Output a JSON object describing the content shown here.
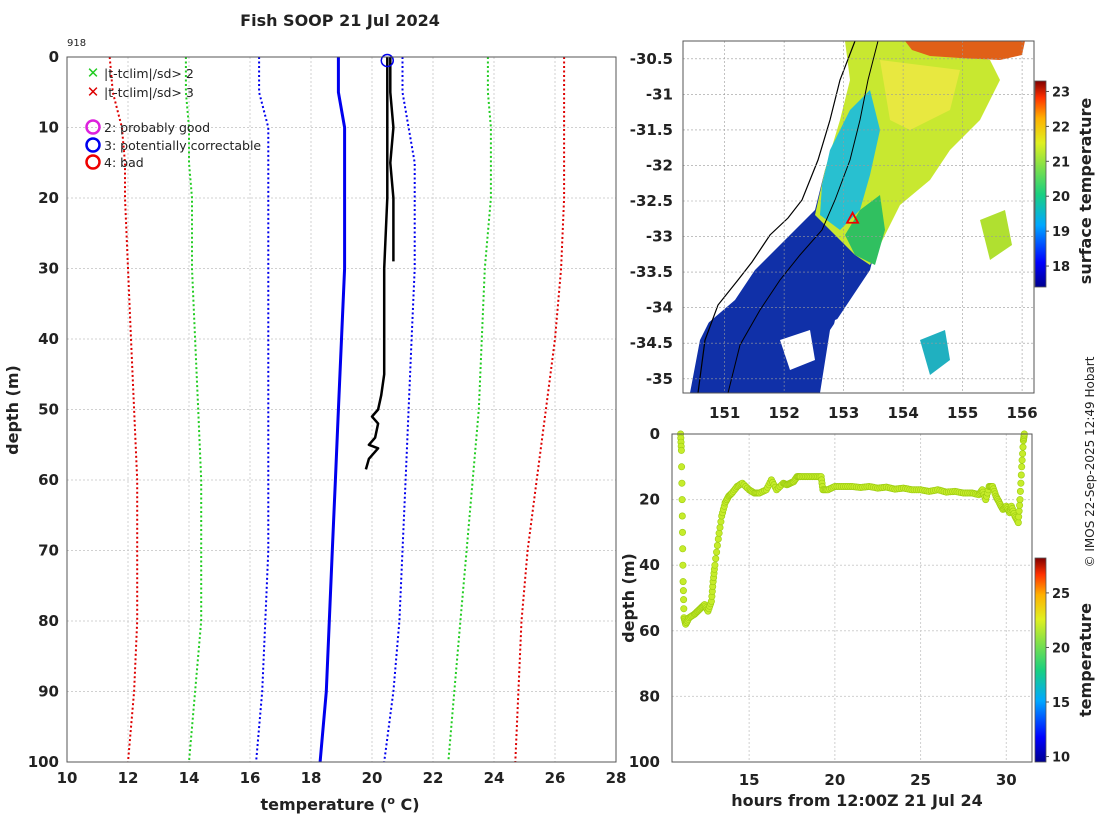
{
  "figure": {
    "title": "Fish SOOP 21 Jul 2024",
    "profile_id": "918",
    "credit": "© IMOS 22-Sep-2025 12:49 Hobart"
  },
  "legend": {
    "items": [
      {
        "marker": "x",
        "color": "#22cc22",
        "label": "|t-tclim|/sd> 2"
      },
      {
        "marker": "x",
        "color": "#dd0000",
        "label": "|t-tclim|/sd> 3"
      },
      {
        "marker": "o",
        "color": "#dd22dd",
        "label": "2: probably good"
      },
      {
        "marker": "o",
        "color": "#0000ee",
        "label": "3: potentially correctable"
      },
      {
        "marker": "o",
        "color": "#ee0000",
        "label": "4: bad"
      }
    ]
  },
  "chart_data": [
    {
      "id": "profile",
      "type": "line",
      "xlabel": "temperature (",
      "xlabel_sup": "o",
      "xlabel_end": " C)",
      "ylabel": "depth (m)",
      "xlim": [
        10,
        28
      ],
      "ylim": [
        0,
        100
      ],
      "y_inverted": true,
      "grid": true,
      "xticks": [
        10,
        12,
        14,
        16,
        18,
        20,
        22,
        24,
        26,
        28
      ],
      "yticks": [
        0,
        10,
        20,
        30,
        40,
        50,
        60,
        70,
        80,
        90,
        100
      ],
      "series": [
        {
          "name": "clim -3sd",
          "color": "#dd0000",
          "style": "dotted",
          "points": [
            [
              11.4,
              0
            ],
            [
              11.5,
              5
            ],
            [
              11.8,
              10
            ],
            [
              11.9,
              15
            ],
            [
              11.9,
              20
            ],
            [
              12.0,
              30
            ],
            [
              12.1,
              40
            ],
            [
              12.2,
              50
            ],
            [
              12.3,
              60
            ],
            [
              12.3,
              70
            ],
            [
              12.3,
              80
            ],
            [
              12.2,
              90
            ],
            [
              12.0,
              100
            ]
          ]
        },
        {
          "name": "clim -2sd",
          "color": "#22cc22",
          "style": "dotted",
          "points": [
            [
              13.9,
              0
            ],
            [
              13.9,
              5
            ],
            [
              14.0,
              10
            ],
            [
              14.0,
              15
            ],
            [
              14.1,
              20
            ],
            [
              14.1,
              30
            ],
            [
              14.2,
              40
            ],
            [
              14.3,
              50
            ],
            [
              14.4,
              60
            ],
            [
              14.4,
              70
            ],
            [
              14.4,
              80
            ],
            [
              14.2,
              90
            ],
            [
              14.0,
              100
            ]
          ]
        },
        {
          "name": "clim -1sd",
          "color": "#0000ee",
          "style": "dotted",
          "points": [
            [
              16.3,
              0
            ],
            [
              16.3,
              5
            ],
            [
              16.6,
              10
            ],
            [
              16.6,
              15
            ],
            [
              16.6,
              20
            ],
            [
              16.6,
              30
            ],
            [
              16.6,
              40
            ],
            [
              16.6,
              50
            ],
            [
              16.6,
              60
            ],
            [
              16.6,
              70
            ],
            [
              16.5,
              80
            ],
            [
              16.4,
              90
            ],
            [
              16.2,
              100
            ]
          ]
        },
        {
          "name": "climatology mean",
          "color": "#0000ee",
          "style": "solid",
          "width": 3,
          "points": [
            [
              18.9,
              0
            ],
            [
              18.9,
              5
            ],
            [
              19.1,
              10
            ],
            [
              19.1,
              15
            ],
            [
              19.1,
              20
            ],
            [
              19.1,
              30
            ],
            [
              19.0,
              40
            ],
            [
              18.9,
              50
            ],
            [
              18.8,
              60
            ],
            [
              18.7,
              70
            ],
            [
              18.6,
              80
            ],
            [
              18.5,
              90
            ],
            [
              18.3,
              100
            ]
          ]
        },
        {
          "name": "clim +1sd",
          "color": "#0000ee",
          "style": "dotted",
          "points": [
            [
              21.0,
              0
            ],
            [
              21.0,
              5
            ],
            [
              21.2,
              10
            ],
            [
              21.4,
              15
            ],
            [
              21.4,
              20
            ],
            [
              21.4,
              30
            ],
            [
              21.3,
              40
            ],
            [
              21.2,
              50
            ],
            [
              21.1,
              60
            ],
            [
              21.0,
              70
            ],
            [
              20.9,
              80
            ],
            [
              20.7,
              90
            ],
            [
              20.4,
              100
            ]
          ]
        },
        {
          "name": "clim +2sd",
          "color": "#22cc22",
          "style": "dotted",
          "points": [
            [
              23.8,
              0
            ],
            [
              23.8,
              5
            ],
            [
              23.9,
              10
            ],
            [
              23.9,
              15
            ],
            [
              23.9,
              20
            ],
            [
              23.7,
              30
            ],
            [
              23.6,
              40
            ],
            [
              23.5,
              50
            ],
            [
              23.3,
              60
            ],
            [
              23.1,
              70
            ],
            [
              22.9,
              80
            ],
            [
              22.7,
              90
            ],
            [
              22.5,
              100
            ]
          ]
        },
        {
          "name": "clim +3sd",
          "color": "#dd0000",
          "style": "dotted",
          "points": [
            [
              26.3,
              0
            ],
            [
              26.3,
              5
            ],
            [
              26.3,
              10
            ],
            [
              26.3,
              15
            ],
            [
              26.3,
              20
            ],
            [
              26.2,
              30
            ],
            [
              26.0,
              40
            ],
            [
              25.7,
              50
            ],
            [
              25.4,
              60
            ],
            [
              25.1,
              70
            ],
            [
              24.9,
              80
            ],
            [
              24.8,
              90
            ],
            [
              24.7,
              100
            ]
          ]
        },
        {
          "name": "observed up",
          "color": "#000000",
          "style": "solid",
          "width": 2.5,
          "points": [
            [
              20.5,
              0
            ],
            [
              20.5,
              10
            ],
            [
              20.5,
              20
            ],
            [
              20.4,
              30
            ],
            [
              20.4,
              40
            ],
            [
              20.4,
              45
            ],
            [
              20.3,
              48
            ],
            [
              20.2,
              50
            ],
            [
              20.0,
              51
            ],
            [
              20.2,
              52
            ],
            [
              20.1,
              54
            ],
            [
              19.9,
              55
            ],
            [
              20.2,
              55.5
            ],
            [
              19.9,
              57
            ],
            [
              19.8,
              58.5
            ]
          ]
        },
        {
          "name": "observed down",
          "color": "#000000",
          "style": "solid",
          "width": 2.5,
          "points": [
            [
              20.6,
              0
            ],
            [
              20.6,
              5
            ],
            [
              20.7,
              10
            ],
            [
              20.6,
              15
            ],
            [
              20.7,
              20
            ],
            [
              20.7,
              25
            ],
            [
              20.7,
              29
            ]
          ]
        }
      ],
      "flag_marker": {
        "x": 20.5,
        "y": 0.5,
        "color": "#0000ee"
      }
    },
    {
      "id": "map",
      "type": "heatmap",
      "xlim": [
        150.3,
        156.2
      ],
      "ylim": [
        -35.2,
        -30.25
      ],
      "xticks": [
        151,
        152,
        153,
        154,
        155,
        156
      ],
      "yticks": [
        -30.5,
        -31,
        -31.5,
        -32,
        -32.5,
        -33,
        -33.5,
        -34,
        -34.5,
        -35
      ],
      "grid": true,
      "station": {
        "lon": 153.15,
        "lat": -32.75,
        "color": "#ee0000"
      },
      "colorbar": {
        "label": "surface temperature",
        "range": [
          17.4,
          23.3
        ],
        "ticks": [
          18,
          19,
          20,
          21,
          22,
          23
        ]
      }
    },
    {
      "id": "timeseries",
      "type": "scatter",
      "xlabel": "hours from 12:00Z 21 Jul 24",
      "ylabel": "depth (m)",
      "xlim": [
        10.5,
        31.5
      ],
      "ylim": [
        0,
        100
      ],
      "y_inverted": true,
      "xticks": [
        15,
        20,
        25,
        30
      ],
      "yticks": [
        0,
        20,
        40,
        60,
        80,
        100
      ],
      "color_value": 22,
      "points": [
        [
          11.0,
          0
        ],
        [
          11.05,
          5
        ],
        [
          11.1,
          25
        ],
        [
          11.15,
          45
        ],
        [
          11.2,
          56
        ],
        [
          11.3,
          58
        ],
        [
          11.5,
          56
        ],
        [
          11.8,
          55
        ],
        [
          12.0,
          54
        ],
        [
          12.2,
          53
        ],
        [
          12.4,
          52
        ],
        [
          12.6,
          54
        ],
        [
          12.8,
          51
        ],
        [
          12.9,
          45
        ],
        [
          13.0,
          40
        ],
        [
          13.2,
          32
        ],
        [
          13.4,
          25
        ],
        [
          13.6,
          21
        ],
        [
          13.8,
          19
        ],
        [
          14.0,
          18
        ],
        [
          14.3,
          16
        ],
        [
          14.6,
          15
        ],
        [
          15.0,
          17
        ],
        [
          15.3,
          18
        ],
        [
          15.6,
          18
        ],
        [
          16.0,
          17
        ],
        [
          16.3,
          14
        ],
        [
          16.6,
          17
        ],
        [
          17.0,
          15
        ],
        [
          17.2,
          15.5
        ],
        [
          17.4,
          15
        ],
        [
          17.6,
          14.5
        ],
        [
          17.8,
          13
        ],
        [
          18.0,
          13
        ],
        [
          18.4,
          13
        ],
        [
          18.8,
          13
        ],
        [
          19.2,
          13
        ],
        [
          19.3,
          17
        ],
        [
          19.6,
          17
        ],
        [
          20.0,
          16
        ],
        [
          20.5,
          16
        ],
        [
          21.0,
          16
        ],
        [
          21.5,
          16.3
        ],
        [
          22.0,
          16
        ],
        [
          22.5,
          16.5
        ],
        [
          23.0,
          16.2
        ],
        [
          23.5,
          16.8
        ],
        [
          24.0,
          16.5
        ],
        [
          24.5,
          17
        ],
        [
          25.0,
          17
        ],
        [
          25.5,
          17.5
        ],
        [
          26.0,
          17
        ],
        [
          26.5,
          17.7
        ],
        [
          27.0,
          17.5
        ],
        [
          27.5,
          18
        ],
        [
          28.0,
          18
        ],
        [
          28.4,
          18.5
        ],
        [
          28.6,
          17
        ],
        [
          28.8,
          20
        ],
        [
          29.0,
          16
        ],
        [
          29.2,
          16
        ],
        [
          29.4,
          19
        ],
        [
          29.6,
          21
        ],
        [
          29.8,
          23
        ],
        [
          30.0,
          22
        ],
        [
          30.2,
          24
        ],
        [
          30.3,
          22
        ],
        [
          30.5,
          25
        ],
        [
          30.7,
          27
        ],
        [
          30.8,
          20
        ],
        [
          30.9,
          10
        ],
        [
          31.0,
          2
        ],
        [
          31.05,
          0
        ]
      ],
      "colorbar": {
        "label": "temperature",
        "range": [
          9.5,
          28.2
        ],
        "ticks": [
          10,
          15,
          20,
          25
        ]
      }
    }
  ]
}
